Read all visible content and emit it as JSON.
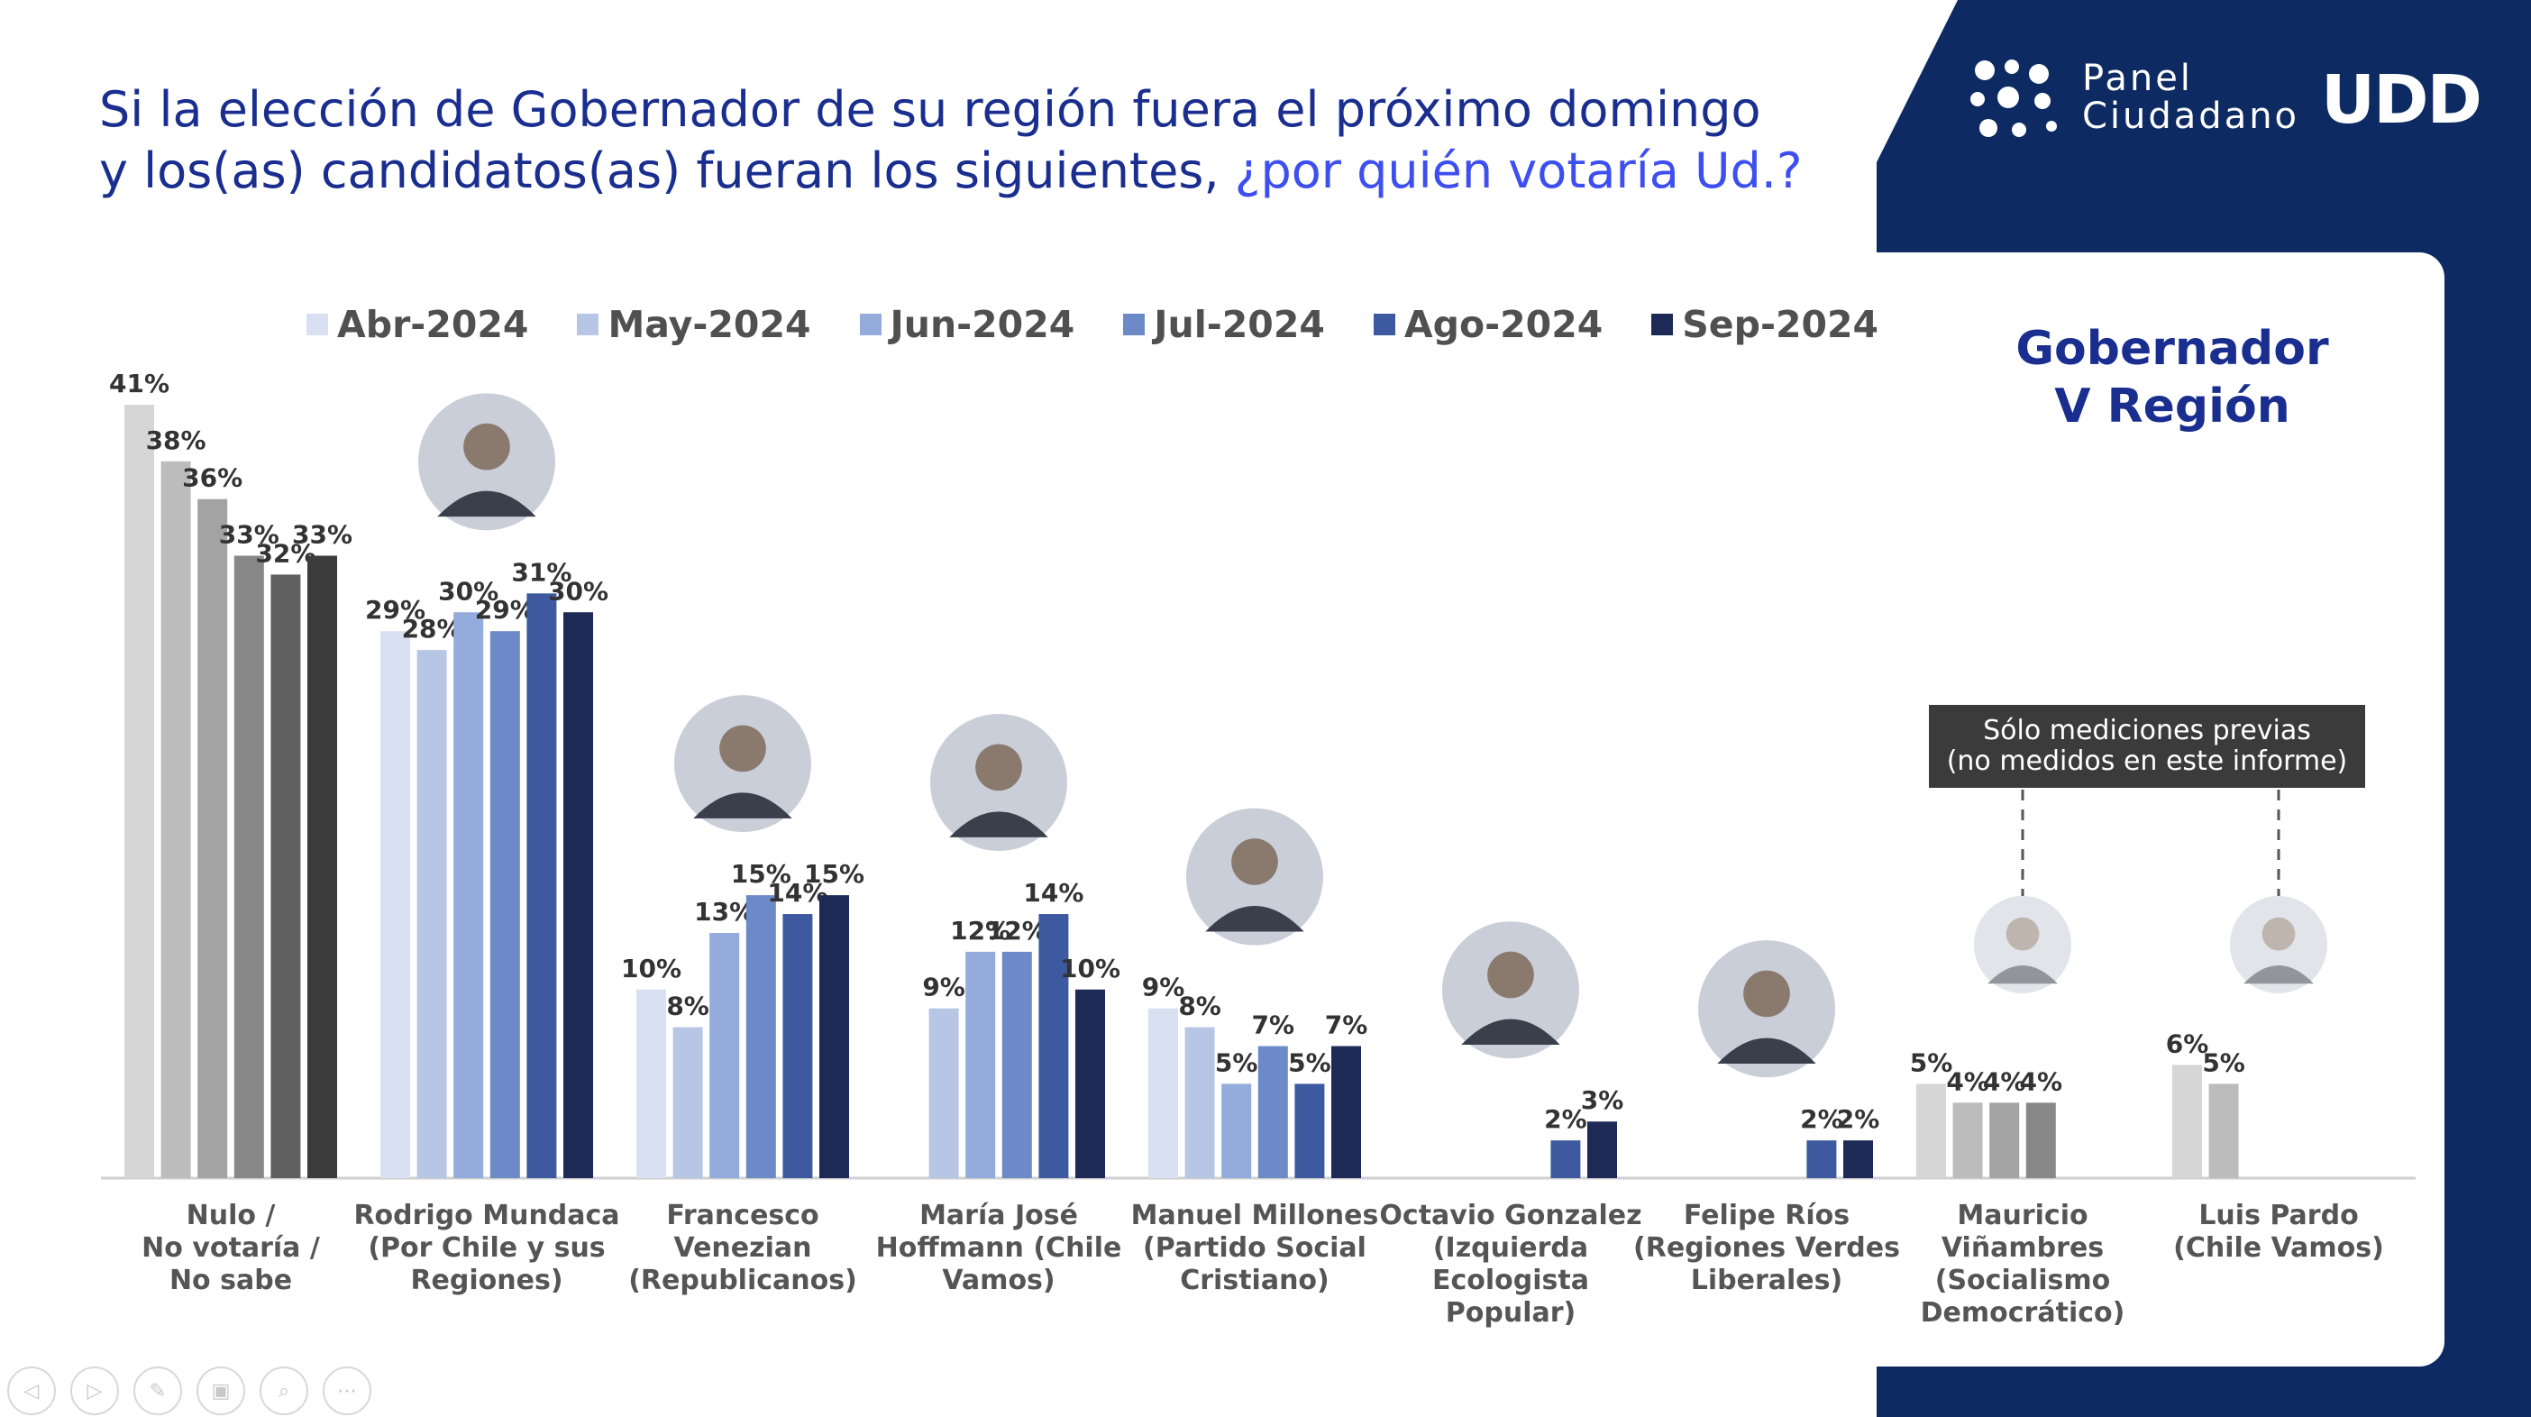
{
  "title": {
    "line1": "Si la elección de Gobernador de su región fuera el próximo domingo",
    "line2": "y los(as) candidatos(as) fueran los siguientes,",
    "question": "¿por quién votaría Ud.?"
  },
  "gobernador": {
    "line1": "Gobernador",
    "line2": "V Región"
  },
  "logo": {
    "line1": "Panel",
    "line2": "Ciudadano",
    "brand": "UDD"
  },
  "note": {
    "line1": "Sólo mediciones previas",
    "line2": "(no medidos en este informe)"
  },
  "chart_data": {
    "type": "bar",
    "series": [
      {
        "name": "Abr-2024",
        "color": "#d9e0f2",
        "neutral_color": "#d6d6d6"
      },
      {
        "name": "May-2024",
        "color": "#b8c6e6",
        "neutral_color": "#bcbcbc"
      },
      {
        "name": "Jun-2024",
        "color": "#94acdb",
        "neutral_color": "#a3a3a3"
      },
      {
        "name": "Jul-2024",
        "color": "#6c8ac8",
        "neutral_color": "#888888"
      },
      {
        "name": "Ago-2024",
        "color": "#3d5aa0",
        "neutral_color": "#606060"
      },
      {
        "name": "Sep-2024",
        "color": "#1d2a55",
        "neutral_color": "#3c3c3c"
      }
    ],
    "categories": [
      {
        "label": [
          "Nulo /",
          "No votaría /",
          "No sabe"
        ],
        "neutral": true,
        "values": [
          41,
          38,
          36,
          33,
          32,
          33
        ]
      },
      {
        "label": [
          "Rodrigo Mundaca",
          "(Por Chile y sus",
          "Regiones)"
        ],
        "photo": true,
        "values": [
          29,
          28,
          30,
          29,
          31,
          30
        ]
      },
      {
        "label": [
          "Francesco",
          "Venezian",
          "(Republicanos)"
        ],
        "photo": true,
        "values": [
          10,
          8,
          13,
          15,
          14,
          15
        ]
      },
      {
        "label": [
          "María José",
          "Hoffmann (Chile",
          "Vamos)"
        ],
        "photo": true,
        "values": [
          null,
          9,
          12,
          12,
          14,
          10
        ]
      },
      {
        "label": [
          "Manuel Millones",
          "(Partido Social",
          "Cristiano)"
        ],
        "photo": true,
        "values": [
          9,
          8,
          5,
          7,
          5,
          7
        ]
      },
      {
        "label": [
          "Octavio Gonzalez",
          "(Izquierda",
          "Ecologista",
          "Popular)"
        ],
        "photo": true,
        "values": [
          null,
          null,
          null,
          null,
          2,
          3
        ]
      },
      {
        "label": [
          "Felipe Ríos",
          "(Regiones Verdes",
          "Liberales)"
        ],
        "photo": true,
        "values": [
          null,
          null,
          null,
          null,
          2,
          2
        ]
      },
      {
        "label": [
          "Mauricio",
          "Viñambres",
          "(Socialismo",
          "Democrático)"
        ],
        "photo": true,
        "neutral": true,
        "previous_only": true,
        "values": [
          5,
          4,
          4,
          4,
          null,
          null
        ]
      },
      {
        "label": [
          "Luis Pardo",
          "(Chile Vamos)"
        ],
        "photo": true,
        "neutral": true,
        "previous_only": true,
        "values": [
          6,
          5,
          null,
          null,
          null,
          null
        ]
      }
    ],
    "ylim": [
      0,
      45
    ],
    "value_suffix": "%",
    "legend_position": "top"
  },
  "toolbar": [
    "◁",
    "▷",
    "✎",
    "▣",
    "⌕",
    "⋯"
  ]
}
